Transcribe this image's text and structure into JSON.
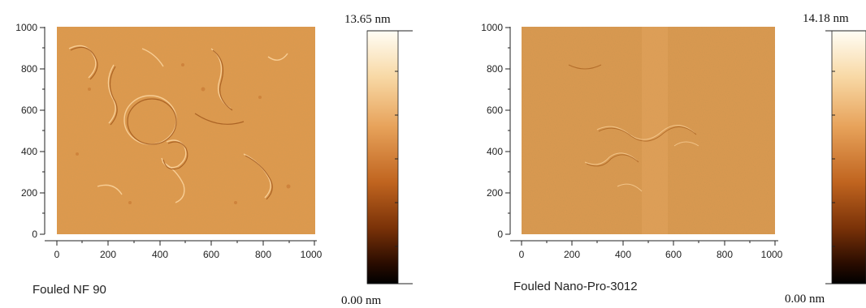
{
  "panels": [
    {
      "id": "nf90",
      "caption": "Fouled NF 90",
      "x_ticks": [
        "0",
        "200",
        "400",
        "600",
        "800",
        "1000"
      ],
      "y_ticks": [
        "0",
        "200",
        "400",
        "600",
        "800",
        "1000"
      ],
      "scale_max": "13.65 nm",
      "scale_min": "0.00 nm"
    },
    {
      "id": "nanopro",
      "caption": "Fouled Nano-Pro-3012",
      "x_ticks": [
        "0",
        "200",
        "400",
        "600",
        "800",
        "1000"
      ],
      "y_ticks": [
        "0",
        "200",
        "400",
        "600",
        "800",
        "1000"
      ],
      "scale_max": "14.18 nm",
      "scale_min": "0.00 nm"
    }
  ],
  "colors": {
    "surface_base": "#e09a4c",
    "surface_light": "#f0b470",
    "surface_dark": "#b86a28",
    "colorbar_stops": [
      "#fffdf5",
      "#f8d9a6",
      "#e7a25a",
      "#c0641f",
      "#7a3208",
      "#2a0c00",
      "#000000"
    ]
  }
}
